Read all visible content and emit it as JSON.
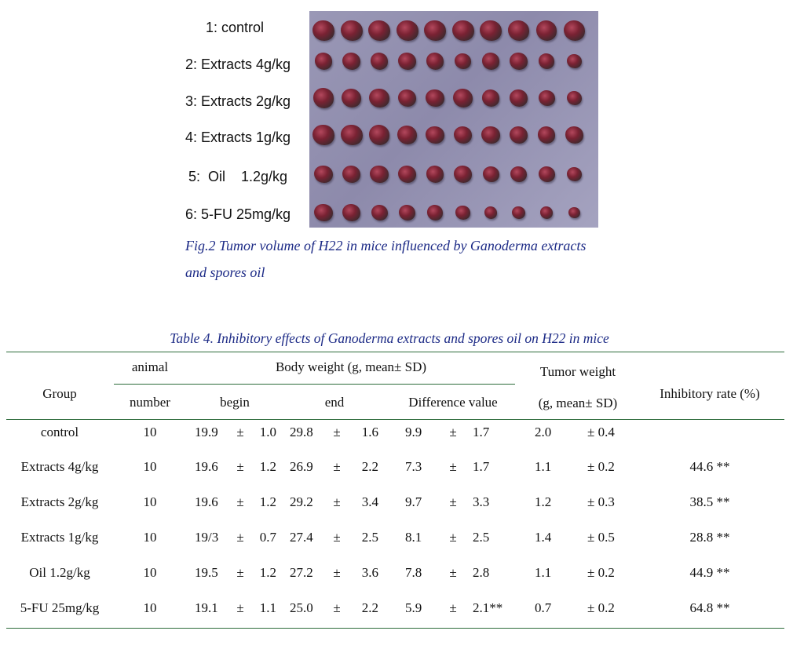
{
  "figure": {
    "labels": [
      "1: control",
      "2: Extracts 4g/kg",
      "3: Extracts 2g/kg",
      "4: Extracts 1g/kg",
      "5:  Oil    1.2g/kg",
      "6: 5-FU 25mg/kg"
    ],
    "caption": "Fig.2 Tumor volume of H22 in mice influenced by Ganoderma extracts and spores oil",
    "photo": {
      "background": "#9a98b6",
      "tumor_color": "#7a2233",
      "rows": [
        [
          1.0,
          1.0,
          1.0,
          1.0,
          1.0,
          1.0,
          1.0,
          0.95,
          0.95,
          0.95
        ],
        [
          0.82,
          0.82,
          0.82,
          0.82,
          0.82,
          0.78,
          0.8,
          0.8,
          0.72,
          0.68
        ],
        [
          0.95,
          0.9,
          0.9,
          0.85,
          0.85,
          0.9,
          0.8,
          0.8,
          0.75,
          0.7
        ],
        [
          1.0,
          1.0,
          0.95,
          0.9,
          0.85,
          0.85,
          0.85,
          0.85,
          0.8,
          0.8
        ],
        [
          0.85,
          0.85,
          0.85,
          0.85,
          0.8,
          0.8,
          0.75,
          0.75,
          0.75,
          0.7
        ],
        [
          0.85,
          0.8,
          0.75,
          0.75,
          0.72,
          0.65,
          0.6,
          0.6,
          0.6,
          0.55
        ]
      ]
    }
  },
  "table": {
    "title": "Table 4. Inhibitory effects of Ganoderma extracts and spores oil on H22 in mice",
    "headers": {
      "group": "Group",
      "animal": "animal",
      "number": "number",
      "body_weight": "Body weight (g, mean± SD)",
      "begin": "begin",
      "end": "end",
      "difference": "Difference value",
      "tumor_weight_1": "Tumor weight",
      "tumor_weight_2": "(g, mean± SD)",
      "inhibitory": "Inhibitory rate (%)"
    },
    "pm": "±",
    "rows": [
      {
        "group": "control",
        "number": "10",
        "begin_m": "19.9",
        "begin_sd": "1.0",
        "end_m": "29.8",
        "end_sd": "1.6",
        "diff_m": "9.9",
        "diff_sd": "1.7",
        "tumor_m": "2.0",
        "tumor_sd": "± 0.4",
        "rate": ""
      },
      {
        "group": "Extracts 4g/kg",
        "number": "10",
        "begin_m": "19.6",
        "begin_sd": "1.2",
        "end_m": "26.9",
        "end_sd": "2.2",
        "diff_m": "7.3",
        "diff_sd": "1.7",
        "tumor_m": "1.1",
        "tumor_sd": "± 0.2",
        "rate": "44.6 **"
      },
      {
        "group": "Extracts 2g/kg",
        "number": "10",
        "begin_m": "19.6",
        "begin_sd": "1.2",
        "end_m": "29.2",
        "end_sd": "3.4",
        "diff_m": "9.7",
        "diff_sd": "3.3",
        "tumor_m": "1.2",
        "tumor_sd": "± 0.3",
        "rate": "38.5 **"
      },
      {
        "group": "Extracts 1g/kg",
        "number": "10",
        "begin_m": "19/3",
        "begin_sd": "0.7",
        "end_m": "27.4",
        "end_sd": "2.5",
        "diff_m": "8.1",
        "diff_sd": "2.5",
        "tumor_m": "1.4",
        "tumor_sd": "± 0.5",
        "rate": "28.8 **"
      },
      {
        "group": "Oil 1.2g/kg",
        "number": "10",
        "begin_m": "19.5",
        "begin_sd": "1.2",
        "end_m": "27.2",
        "end_sd": "3.6",
        "diff_m": "7.8",
        "diff_sd": "2.8",
        "tumor_m": "1.1",
        "tumor_sd": "± 0.2",
        "rate": "44.9 **"
      },
      {
        "group": "5-FU 25mg/kg",
        "number": "10",
        "begin_m": "19.1",
        "begin_sd": "1.1",
        "end_m": "25.0",
        "end_sd": "2.2",
        "diff_m": "5.9",
        "diff_sd": "2.1**",
        "tumor_m": "0.7",
        "tumor_sd": "± 0.2",
        "rate": "64.8 **"
      }
    ]
  }
}
